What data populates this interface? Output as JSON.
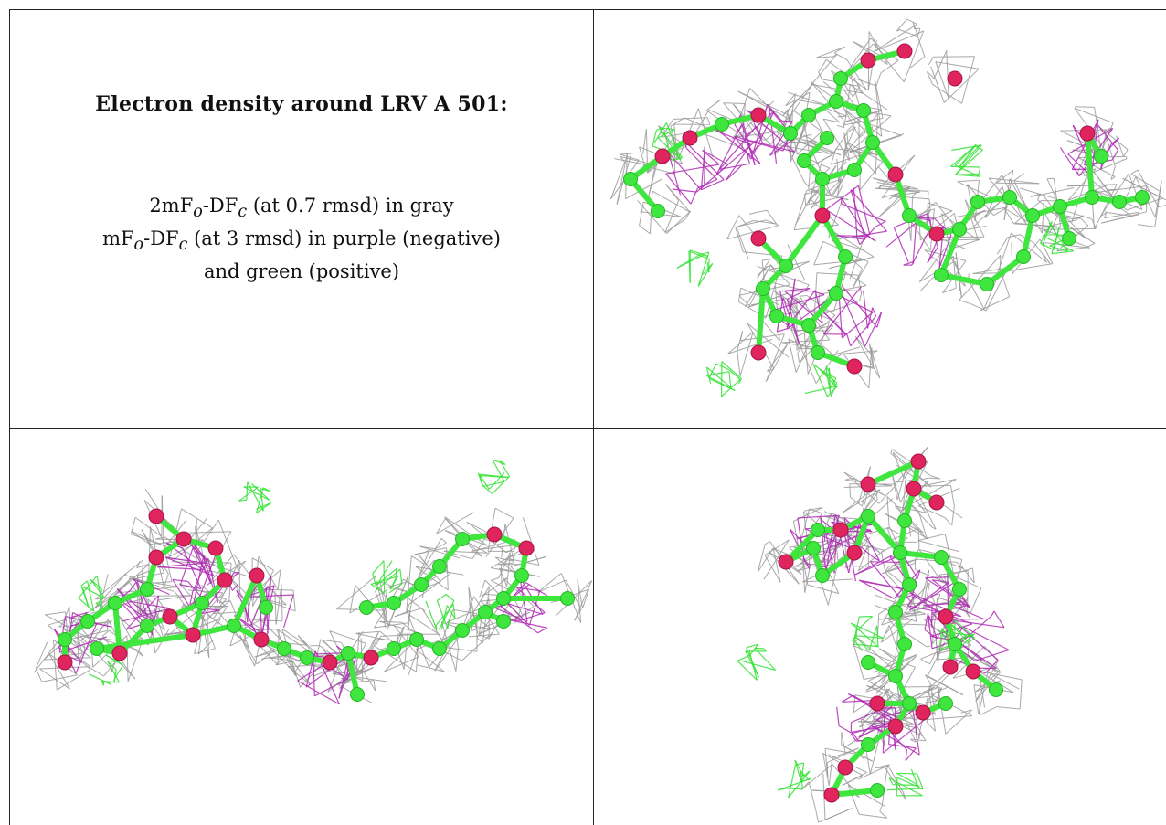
{
  "title": "Electron density around LRV A 501:",
  "legend": {
    "line1_prefix": "2mF",
    "line1_sub1": "o",
    "line1_mid": "-DF",
    "line1_sub2": "c",
    "line1_suffix": " (at 0.7 rmsd) in gray",
    "line2_prefix": "mF",
    "line2_sub1": "o",
    "line2_mid": "-DF",
    "line2_sub2": "c",
    "line2_suffix": " (at 3 rmsd) in purple (negative)",
    "line3": "and green (positive)"
  },
  "colors": {
    "mesh_2fofc": "#9a9a9a",
    "mesh_negative": "#b02bb5",
    "mesh_positive": "#33e233",
    "carbon": "#3ee63e",
    "oxygen": "#e0245e"
  },
  "views": [
    {
      "name": "view-top-right"
    },
    {
      "name": "view-bottom-left"
    },
    {
      "name": "view-bottom-right"
    }
  ]
}
